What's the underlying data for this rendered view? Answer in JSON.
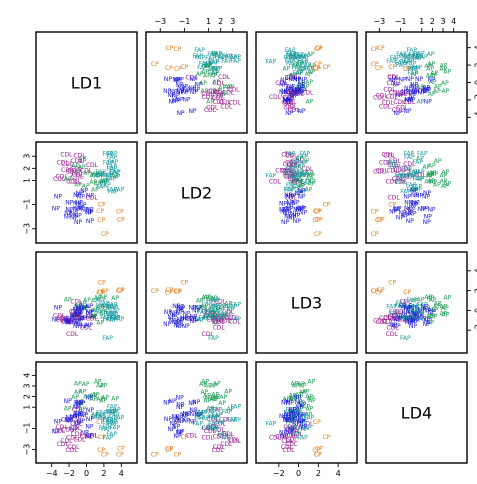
{
  "chart_data": {
    "type": "scatter",
    "title": "",
    "variables": [
      "LD1",
      "LD2",
      "LD3",
      "LD4"
    ],
    "classes": [
      "AP",
      "CDL",
      "CP",
      "FAP",
      "NP"
    ],
    "class_colors": {
      "AP": "#1a9a50",
      "CDL": "#9a1a8f",
      "CP": "#e07b1a",
      "FAP": "#1a9aa0",
      "NP": "#1a1adc"
    },
    "ranges": [
      [
        -5,
        5
      ],
      [
        -3.6,
        3.6
      ],
      [
        -3.6,
        5.2
      ],
      [
        -3.6,
        4.6
      ]
    ],
    "ticks": [
      [
        -4,
        -2,
        0,
        2,
        4
      ],
      [
        -3,
        -1,
        1,
        2,
        3
      ],
      [
        -2,
        0,
        2,
        4
      ],
      [
        -3,
        -1,
        1,
        2,
        3,
        4
      ]
    ],
    "tick_labels": [
      [
        "−4",
        "−2",
        "0",
        "2",
        "4"
      ],
      [
        "−3",
        "−1",
        "1",
        "2",
        "3"
      ],
      [
        "−2",
        "0",
        "2",
        "4"
      ],
      [
        "−3",
        "−1",
        "1",
        "2",
        "3",
        "4"
      ]
    ],
    "centroids": {
      "AP": [
        0.5,
        1.3,
        0.3,
        2.2
      ],
      "CDL": [
        -1.2,
        1.6,
        -0.6,
        -1.3
      ],
      "CP": [
        2.5,
        -2.0,
        2.6,
        -2.5
      ],
      "FAP": [
        2.4,
        1.7,
        -0.6,
        -0.2
      ],
      "NP": [
        -0.6,
        -1.3,
        -0.4,
        0.0
      ]
    },
    "points_per_class": {
      "AP": 20,
      "CDL": 18,
      "CP": 6,
      "FAP": 22,
      "NP": 26
    },
    "spread": [
      1.2,
      0.8,
      0.8,
      0.9
    ],
    "grid": false,
    "legend": "none"
  }
}
